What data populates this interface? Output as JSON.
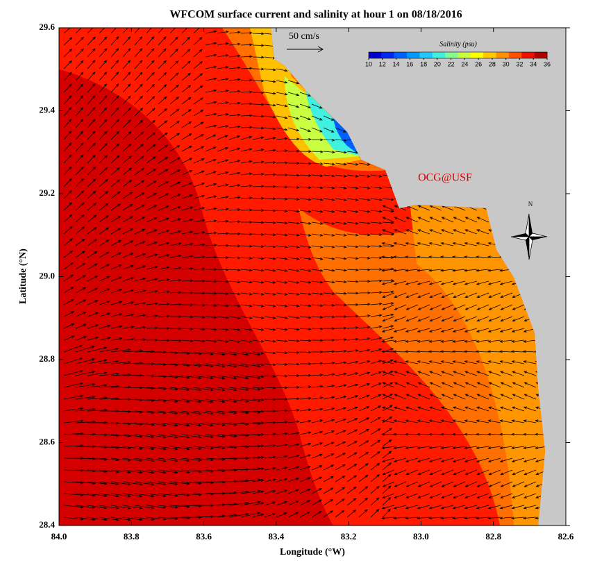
{
  "title": "WFCOM surface current and salinity at hour 1 on 08/18/2016",
  "x_axis": {
    "label": "Longitude (°W)",
    "lim": [
      84.0,
      82.6
    ],
    "ticks": [
      {
        "value": 84.0,
        "label": "84.0"
      },
      83.8,
      83.6,
      83.4,
      83.2,
      {
        "value": 83.0,
        "label": "83.0"
      },
      82.8,
      82.6
    ]
  },
  "y_axis": {
    "label": "Latitude (°N)",
    "lim": [
      28.4,
      29.6
    ],
    "ticks": [
      28.4,
      28.6,
      28.8,
      {
        "value": 29.0,
        "label": "29.0"
      },
      29.2,
      29.4,
      29.6
    ]
  },
  "colorbar": {
    "title": "Salinity (psu)",
    "lim": [
      10,
      36
    ],
    "ticks": [
      10,
      12,
      14,
      16,
      18,
      20,
      22,
      24,
      26,
      28,
      30,
      32,
      34,
      36
    ],
    "colors": [
      "#0000c8",
      "#0028f0",
      "#0060ff",
      "#0098ff",
      "#20c8ff",
      "#40f0e0",
      "#80ff90",
      "#c8ff40",
      "#ffff00",
      "#ffc800",
      "#ff9000",
      "#ff5000",
      "#f01000",
      "#b00000"
    ]
  },
  "scale_label": "50 cm/s",
  "credit": "OCG@USF",
  "north_label": "N"
}
